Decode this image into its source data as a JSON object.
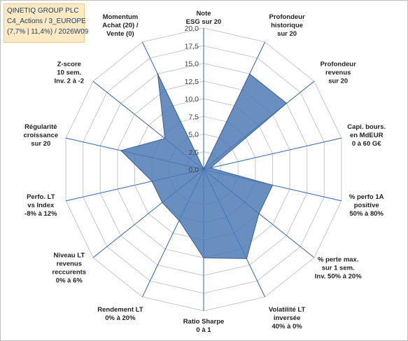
{
  "title_box": {
    "line1": "QINETIQ GROUP PLC",
    "line2": "C4_Actions / 3_EUROPE",
    "line3": "(7,7% | 11,4%) / 2026W09"
  },
  "chart_data": {
    "type": "radar",
    "series_color": "#4f7ab5",
    "grid_color": "#c8c8c8",
    "axis_color": "#2e63b8",
    "rlim": [
      0,
      20
    ],
    "r_ticks": [
      "0,0",
      "2,5",
      "5,0",
      "7,5",
      "10,0",
      "12,5",
      "15,0",
      "17,5",
      "20,0"
    ],
    "axes": [
      {
        "label": [
          "Note",
          "ESG sur 20"
        ],
        "value": 0
      },
      {
        "label": [
          "Profondeur",
          "historique",
          "sur 20"
        ],
        "value": 15
      },
      {
        "label": [
          "Profondeur",
          "revenus",
          "sur 20"
        ],
        "value": 15
      },
      {
        "label": [
          "Capi. bours.",
          "en MdEUR",
          "0 à 60 G€"
        ],
        "value": 1
      },
      {
        "label": [
          "% perfo 1A",
          "positive",
          "50% à 80%"
        ],
        "value": 10
      },
      {
        "label": [
          "% perte max.",
          "sur 1 sem.",
          "Inv. 50% à 20%"
        ],
        "value": 10
      },
      {
        "label": [
          "Volatilité LT",
          "inversée",
          "40% à 0%"
        ],
        "value": 14
      },
      {
        "label": [
          "Ratio Sharpe",
          "0 à 1"
        ],
        "value": 12.5
      },
      {
        "label": [
          "Rendement LT",
          "0% à 20%"
        ],
        "value": 8
      },
      {
        "label": [
          "Niveau LT",
          "revenus",
          "reccurents",
          "0% à 6%"
        ],
        "value": 7.5
      },
      {
        "label": [
          "Perfo. LT",
          "vs Index",
          "-8% à 12%"
        ],
        "value": 7.5
      },
      {
        "label": [
          "Régularité",
          "croissance",
          "sur 20"
        ],
        "value": 12
      },
      {
        "label": [
          "Z-score",
          "10 sem.",
          "Inv. 2 à -2"
        ],
        "value": 7
      },
      {
        "label": [
          "Momentum",
          "Achat (20) /",
          "Vente (0)"
        ],
        "value": 15
      }
    ]
  }
}
